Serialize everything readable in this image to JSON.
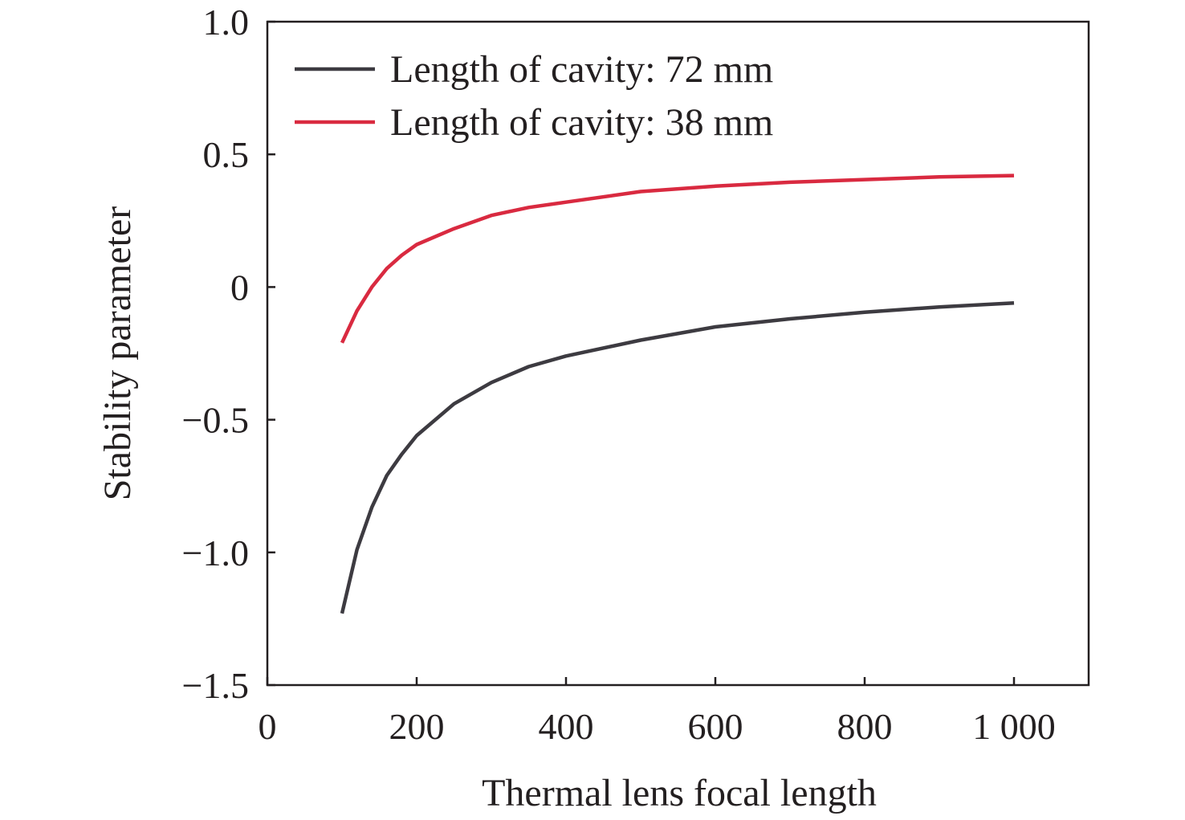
{
  "chart_data": {
    "type": "line",
    "xlabel": "Thermal lens focal length",
    "ylabel": "Stability parameter",
    "xlim": [
      0,
      1100
    ],
    "ylim": [
      -1.5,
      1.0
    ],
    "x_ticks": [
      0,
      200,
      400,
      600,
      800,
      1000
    ],
    "x_tick_labels": [
      "0",
      "200",
      "400",
      "600",
      "800",
      "1 000"
    ],
    "y_ticks": [
      -1.5,
      -1.0,
      -0.5,
      0,
      0.5,
      1.0
    ],
    "y_tick_labels": [
      "−1.5",
      "−1.0",
      "−0.5",
      "0",
      "0.5",
      "1.0"
    ],
    "grid": false,
    "legend_position": "top-left",
    "series": [
      {
        "name": "Length of cavity: 72 mm",
        "color": "#3d3b41",
        "x": [
          100,
          120,
          140,
          160,
          180,
          200,
          250,
          300,
          350,
          400,
          500,
          600,
          700,
          800,
          900,
          1000
        ],
        "y": [
          -1.23,
          -0.99,
          -0.83,
          -0.71,
          -0.63,
          -0.56,
          -0.44,
          -0.36,
          -0.3,
          -0.26,
          -0.2,
          -0.15,
          -0.12,
          -0.095,
          -0.075,
          -0.06
        ]
      },
      {
        "name": "Length of cavity: 38 mm",
        "color": "#d92a40",
        "x": [
          100,
          120,
          140,
          160,
          180,
          200,
          250,
          300,
          350,
          400,
          500,
          600,
          700,
          800,
          900,
          1000
        ],
        "y": [
          -0.21,
          -0.09,
          0.0,
          0.07,
          0.12,
          0.16,
          0.22,
          0.27,
          0.3,
          0.32,
          0.36,
          0.38,
          0.395,
          0.405,
          0.415,
          0.42
        ]
      }
    ]
  }
}
